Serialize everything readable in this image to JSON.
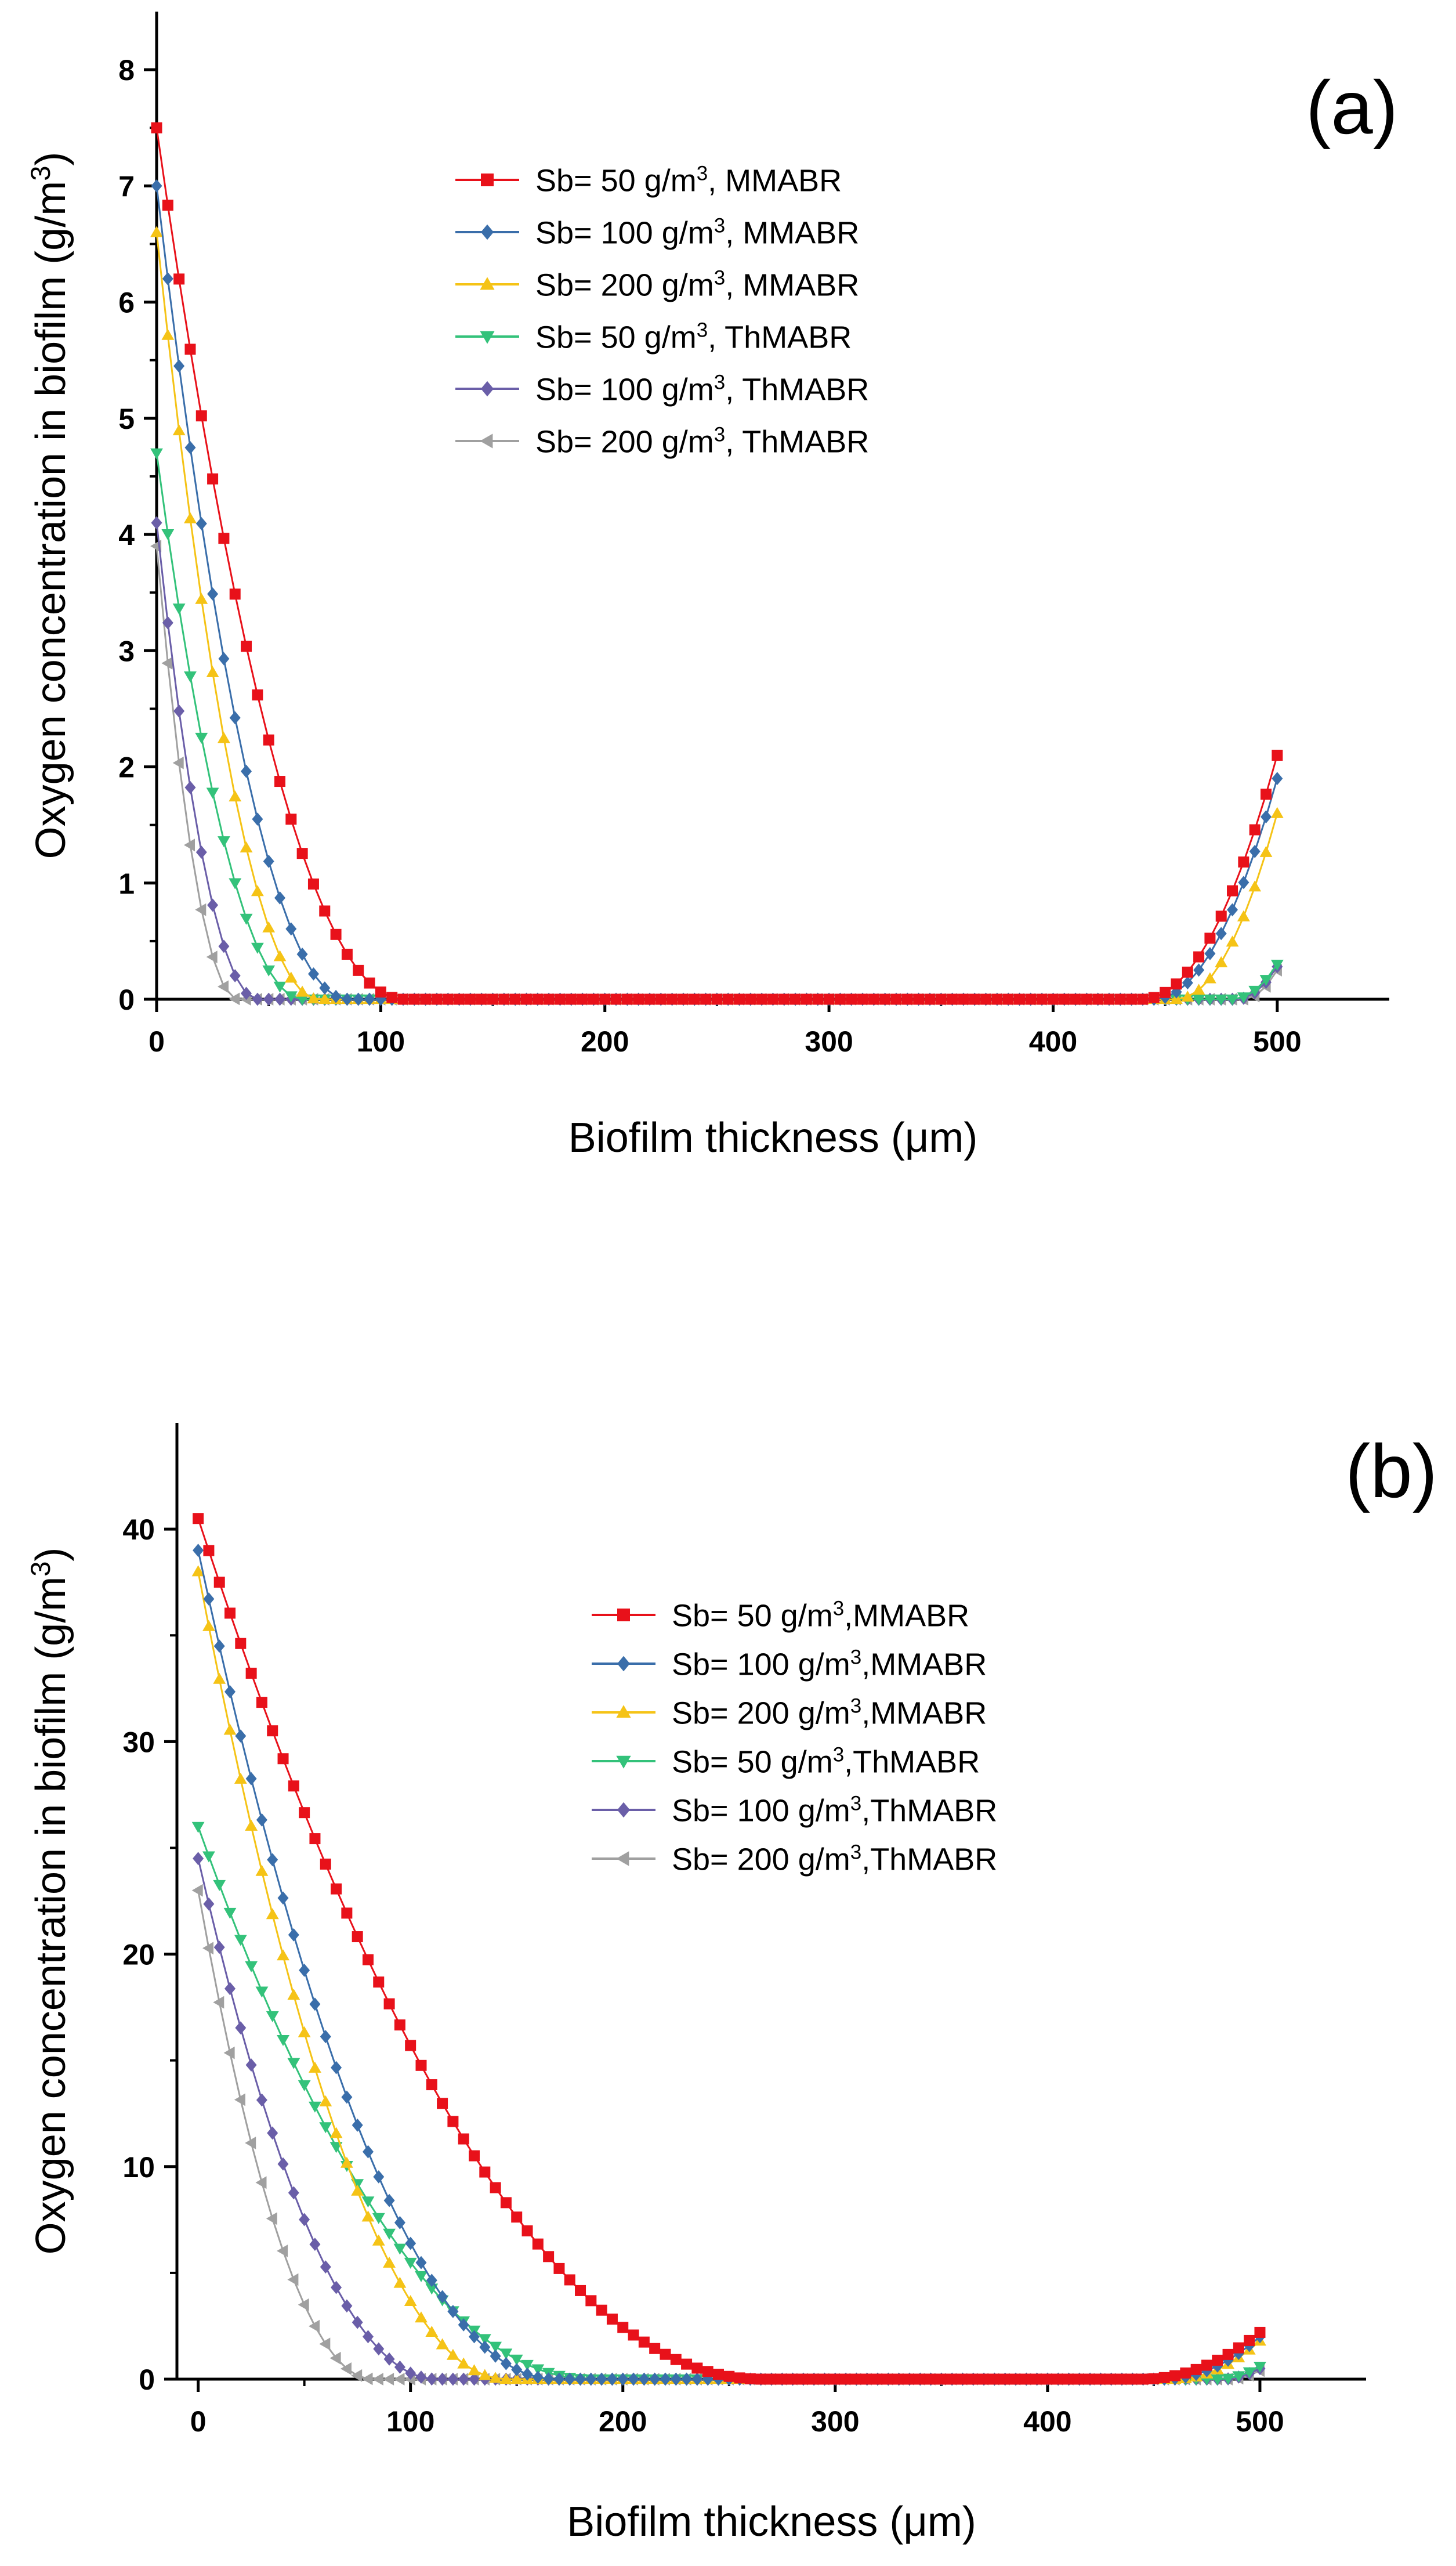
{
  "chart_data": [
    {
      "type": "line",
      "panel_label": "(a)",
      "xlabel": "Biofilm thickness (μm)",
      "ylabel_prefix": "Oxygen concentration in biofilm (g/m",
      "ylabel_sup": "3",
      "ylabel_suffix": ")",
      "xlim": [
        0,
        550
      ],
      "ylim": [
        0,
        8.5
      ],
      "xticks": [
        0,
        100,
        200,
        300,
        400,
        500
      ],
      "yticks": [
        0,
        1,
        2,
        3,
        4,
        5,
        6,
        7,
        8
      ],
      "legend_position": "upper-middle",
      "series": [
        {
          "label_prefix": "Sb= 50 g/m",
          "label_sup": "3",
          "label_suffix": ", MMABR",
          "color": "#e8111a",
          "marker": "square",
          "c0": 7.5,
          "decay_length": 110,
          "end_value": 2.1,
          "end_rise_length": 60
        },
        {
          "label_prefix": "Sb= 100 g/m",
          "label_sup": "3",
          "label_suffix": ", MMABR",
          "color": "#3a6eaa",
          "marker": "diamond",
          "c0": 7.0,
          "decay_length": 85,
          "end_value": 1.9,
          "end_rise_length": 55
        },
        {
          "label_prefix": "Sb= 200 g/m",
          "label_sup": "3",
          "label_suffix": ", MMABR",
          "color": "#f5c316",
          "marker": "triangle-up",
          "c0": 6.6,
          "decay_length": 72,
          "end_value": 1.6,
          "end_rise_length": 45
        },
        {
          "label_prefix": "Sb= 50 g/m",
          "label_sup": "3",
          "label_suffix": ", ThMABR",
          "color": "#33c27a",
          "marker": "triangle-down",
          "c0": 4.7,
          "decay_length": 65,
          "end_value": 0.3,
          "end_rise_length": 20
        },
        {
          "label_prefix": "Sb= 100 g/m",
          "label_sup": "3",
          "label_suffix": ", ThMABR",
          "color": "#6a5ea8",
          "marker": "diamond",
          "c0": 4.1,
          "decay_length": 45,
          "end_value": 0.28,
          "end_rise_length": 18
        },
        {
          "label_prefix": "Sb= 200 g/m",
          "label_sup": "3",
          "label_suffix": ", ThMABR",
          "color": "#a0a0a0",
          "marker": "triangle-left",
          "c0": 3.9,
          "decay_length": 36,
          "end_value": 0.25,
          "end_rise_length": 15
        }
      ]
    },
    {
      "type": "line",
      "panel_label": "(b)",
      "xlabel": "Biofilm thickness (μm)",
      "ylabel_prefix": "Oxygen concentration in biofilm (g/m",
      "ylabel_sup": "3",
      "ylabel_suffix": ")",
      "xlim": [
        -10,
        550
      ],
      "ylim": [
        0,
        45
      ],
      "xticks": [
        0,
        100,
        200,
        300,
        400,
        500
      ],
      "yticks": [
        0,
        10,
        20,
        30,
        40
      ],
      "legend_position": "middle-right",
      "series": [
        {
          "label_prefix": "Sb= 50 g/m",
          "label_sup": "3",
          "label_suffix": ",MMABR",
          "color": "#e8111a",
          "marker": "square",
          "c0": 40.5,
          "decay_length": 265,
          "end_value": 2.2,
          "end_rise_length": 55
        },
        {
          "label_prefix": "Sb= 100 g/m",
          "label_sup": "3",
          "label_suffix": ",MMABR",
          "color": "#3a6eaa",
          "marker": "diamond",
          "c0": 39.0,
          "decay_length": 168,
          "end_value": 2.0,
          "end_rise_length": 45
        },
        {
          "label_prefix": "Sb= 200 g/m",
          "label_sup": "3",
          "label_suffix": ",MMABR",
          "color": "#f5c316",
          "marker": "triangle-up",
          "c0": 38.0,
          "decay_length": 145,
          "end_value": 1.8,
          "end_rise_length": 40
        },
        {
          "label_prefix": "Sb= 50 g/m",
          "label_sup": "3",
          "label_suffix": ",ThMABR",
          "color": "#33c27a",
          "marker": "triangle-down",
          "c0": 26.0,
          "decay_length": 185,
          "end_value": 0.6,
          "end_rise_length": 20
        },
        {
          "label_prefix": "Sb= 100 g/m",
          "label_sup": "3",
          "label_suffix": ",ThMABR",
          "color": "#6a5ea8",
          "marker": "diamond",
          "c0": 24.5,
          "decay_length": 112,
          "end_value": 0.5,
          "end_rise_length": 18
        },
        {
          "label_prefix": "Sb= 200 g/m",
          "label_sup": "3",
          "label_suffix": ",ThMABR",
          "color": "#a0a0a0",
          "marker": "triangle-left",
          "c0": 23.0,
          "decay_length": 82,
          "end_value": 0.4,
          "end_rise_length": 15
        }
      ]
    }
  ]
}
